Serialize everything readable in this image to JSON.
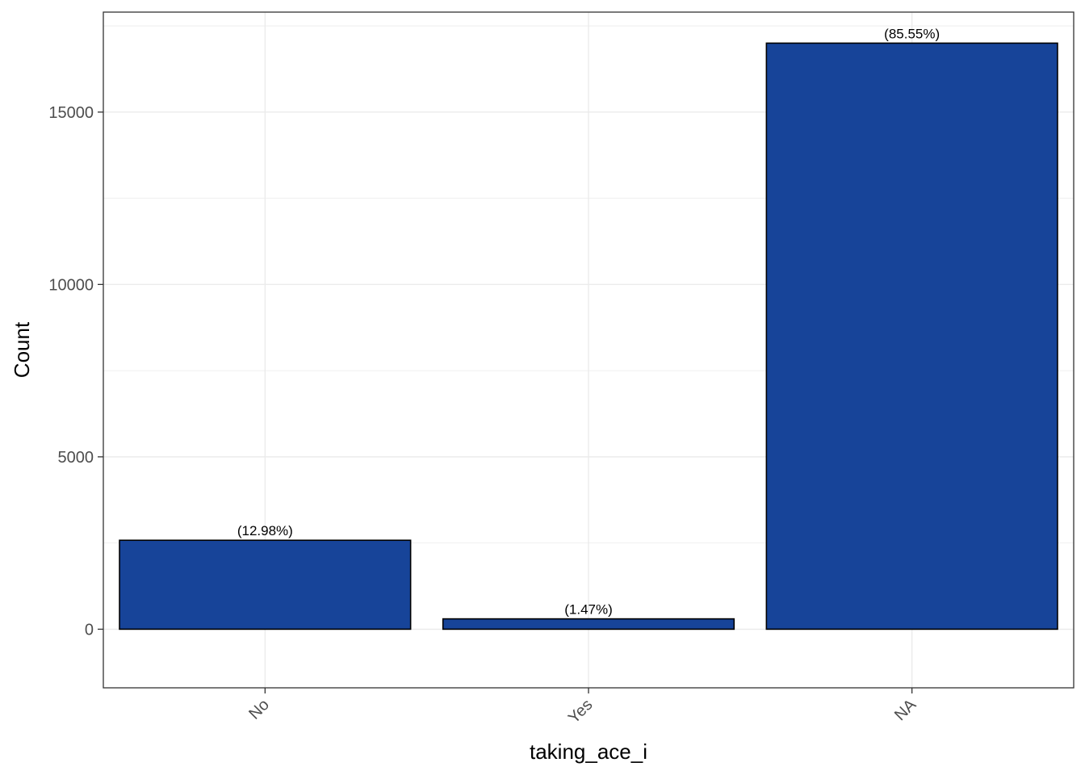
{
  "chart_data": {
    "type": "bar",
    "categories": [
      "No",
      "Yes",
      "NA"
    ],
    "values": [
      2580,
      300,
      17000
    ],
    "bar_labels": [
      "(12.98%)",
      "(1.47%)",
      "(85.55%)"
    ],
    "xlabel": "taking_ace_i",
    "ylabel": "Count",
    "ylim": [
      -1700,
      17900
    ],
    "yticks": [
      0,
      5000,
      10000,
      15000
    ],
    "ytick_labels": [
      "0",
      "5000",
      "10000",
      "15000"
    ],
    "grid": true,
    "legend": "none",
    "colors": {
      "bar_fill": "#174499",
      "bar_stroke": "#000000",
      "grid": "#ebebeb",
      "panel_border": "#333333",
      "tick_text": "#4d4d4d"
    }
  }
}
